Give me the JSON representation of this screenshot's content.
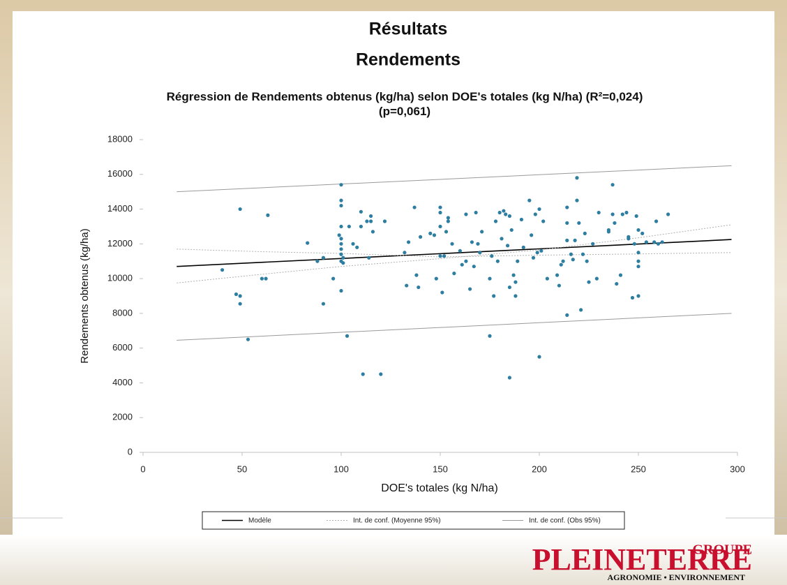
{
  "slide": {
    "title": "Résultats",
    "subtitle": "Rendements",
    "logo": {
      "top": "GROUPE",
      "name": "PLEINETERRE",
      "tagline": "AGRONOMIE • ENVIRONNEMENT"
    }
  },
  "chart_data": {
    "type": "scatter",
    "title": "Régression de Rendements obtenus (kg/ha) selon DOE's totales (kg N/ha) (R²=0,024) (p=0,061)",
    "x_label": "DOE's totales (kg N/ha)",
    "y_label": "Rendements obtenus (kg/ha)",
    "xlim": [
      0,
      300
    ],
    "xticks": [
      0,
      50,
      100,
      150,
      200,
      250,
      300
    ],
    "ylim": [
      0,
      18000
    ],
    "yticks": [
      0,
      2000,
      4000,
      6000,
      8000,
      10000,
      12000,
      14000,
      16000,
      18000
    ],
    "grid": false,
    "points": {
      "color": "#2e7ea1",
      "x": [
        40,
        47,
        49,
        49,
        49,
        53,
        60,
        62,
        63,
        83,
        88,
        91,
        91,
        96,
        99,
        100,
        100,
        100,
        100,
        100,
        100,
        100,
        100,
        100,
        100,
        101,
        101,
        103,
        104,
        106,
        108,
        110,
        110,
        111,
        113,
        114,
        115,
        115,
        116,
        120,
        122,
        132,
        133,
        134,
        137,
        138,
        139,
        140,
        145,
        147,
        148,
        150,
        150,
        150,
        150,
        151,
        152,
        153,
        154,
        154,
        156,
        157,
        160,
        161,
        163,
        163,
        165,
        166,
        167,
        168,
        169,
        170,
        171,
        175,
        175,
        176,
        177,
        178,
        179,
        180,
        181,
        182,
        183,
        184,
        185,
        185,
        185,
        186,
        187,
        188,
        188,
        189,
        191,
        192,
        195,
        196,
        197,
        198,
        199,
        200,
        200,
        201,
        202,
        204,
        209,
        210,
        211,
        212,
        214,
        214,
        214,
        214,
        216,
        217,
        218,
        219,
        219,
        220,
        221,
        222,
        223,
        224,
        225,
        227,
        229,
        230,
        235,
        235,
        237,
        237,
        238,
        239,
        241,
        242,
        244,
        245,
        245,
        247,
        248,
        249,
        250,
        250,
        250,
        250,
        250,
        252,
        254,
        258,
        259,
        260,
        262,
        265
      ],
      "values": [
        10500,
        9100,
        14000,
        9000,
        8550,
        6500,
        10000,
        10000,
        13650,
        12050,
        11000,
        11200,
        8550,
        10000,
        12500,
        15400,
        14500,
        14200,
        13000,
        12300,
        12000,
        11700,
        11400,
        11000,
        9300,
        11200,
        10900,
        6700,
        13000,
        12000,
        11800,
        13850,
        13000,
        4500,
        13300,
        11200,
        13600,
        13300,
        12700,
        4500,
        13300,
        11500,
        9600,
        12100,
        14100,
        10200,
        9500,
        12400,
        12600,
        12500,
        10000,
        14100,
        13800,
        13000,
        11300,
        9200,
        11300,
        12700,
        13500,
        13300,
        12000,
        10300,
        11600,
        10800,
        11000,
        13700,
        9400,
        12100,
        10700,
        13800,
        12000,
        11500,
        12700,
        10000,
        6700,
        11300,
        9000,
        13300,
        11000,
        13800,
        12300,
        13900,
        13700,
        11900,
        13600,
        9500,
        4300,
        12800,
        10200,
        9800,
        9000,
        11000,
        13400,
        11800,
        14500,
        12500,
        11200,
        13700,
        11500,
        14000,
        5500,
        11600,
        13300,
        10000,
        10200,
        9600,
        10800,
        11000,
        14100,
        13200,
        12200,
        7900,
        11400,
        11100,
        12200,
        15800,
        14500,
        13200,
        8200,
        11400,
        12600,
        11000,
        9800,
        12000,
        10000,
        13800,
        12700,
        12800,
        15400,
        13700,
        13200,
        9700,
        10200,
        13700,
        13800,
        12400,
        12300,
        8900,
        12000,
        13600,
        12800,
        11500,
        11000,
        10700,
        9000,
        12600,
        12100,
        12100,
        13300,
        12000,
        12100,
        13700
      ]
    },
    "series": [
      {
        "name": "Modèle",
        "color": "#000000",
        "dash": "none",
        "width": 1.6,
        "curves": [
          {
            "x": [
              17,
              297
            ],
            "values": [
              10700,
              12250
            ]
          }
        ]
      },
      {
        "name": "Int. de conf. (Moyenne 95%)",
        "color": "#b0b0b0",
        "dash": "2 2",
        "width": 1,
        "curves": [
          {
            "x": [
              17,
              60,
              100,
              150,
              200,
              250,
              297
            ],
            "values": [
              9750,
              10250,
              10700,
              11150,
              11650,
              12350,
              13100
            ]
          },
          {
            "x": [
              17,
              60,
              100,
              150,
              200,
              250,
              297
            ],
            "values": [
              11700,
              11550,
              11450,
              11250,
              11350,
              11420,
              11500
            ]
          }
        ]
      },
      {
        "name": "Int. de conf. (Obs 95%)",
        "color": "#999999",
        "dash": "none",
        "width": 1,
        "curves": [
          {
            "x": [
              17,
              297
            ],
            "values": [
              15000,
              16500
            ]
          },
          {
            "x": [
              17,
              297
            ],
            "values": [
              6450,
              8000
            ]
          }
        ]
      }
    ]
  }
}
